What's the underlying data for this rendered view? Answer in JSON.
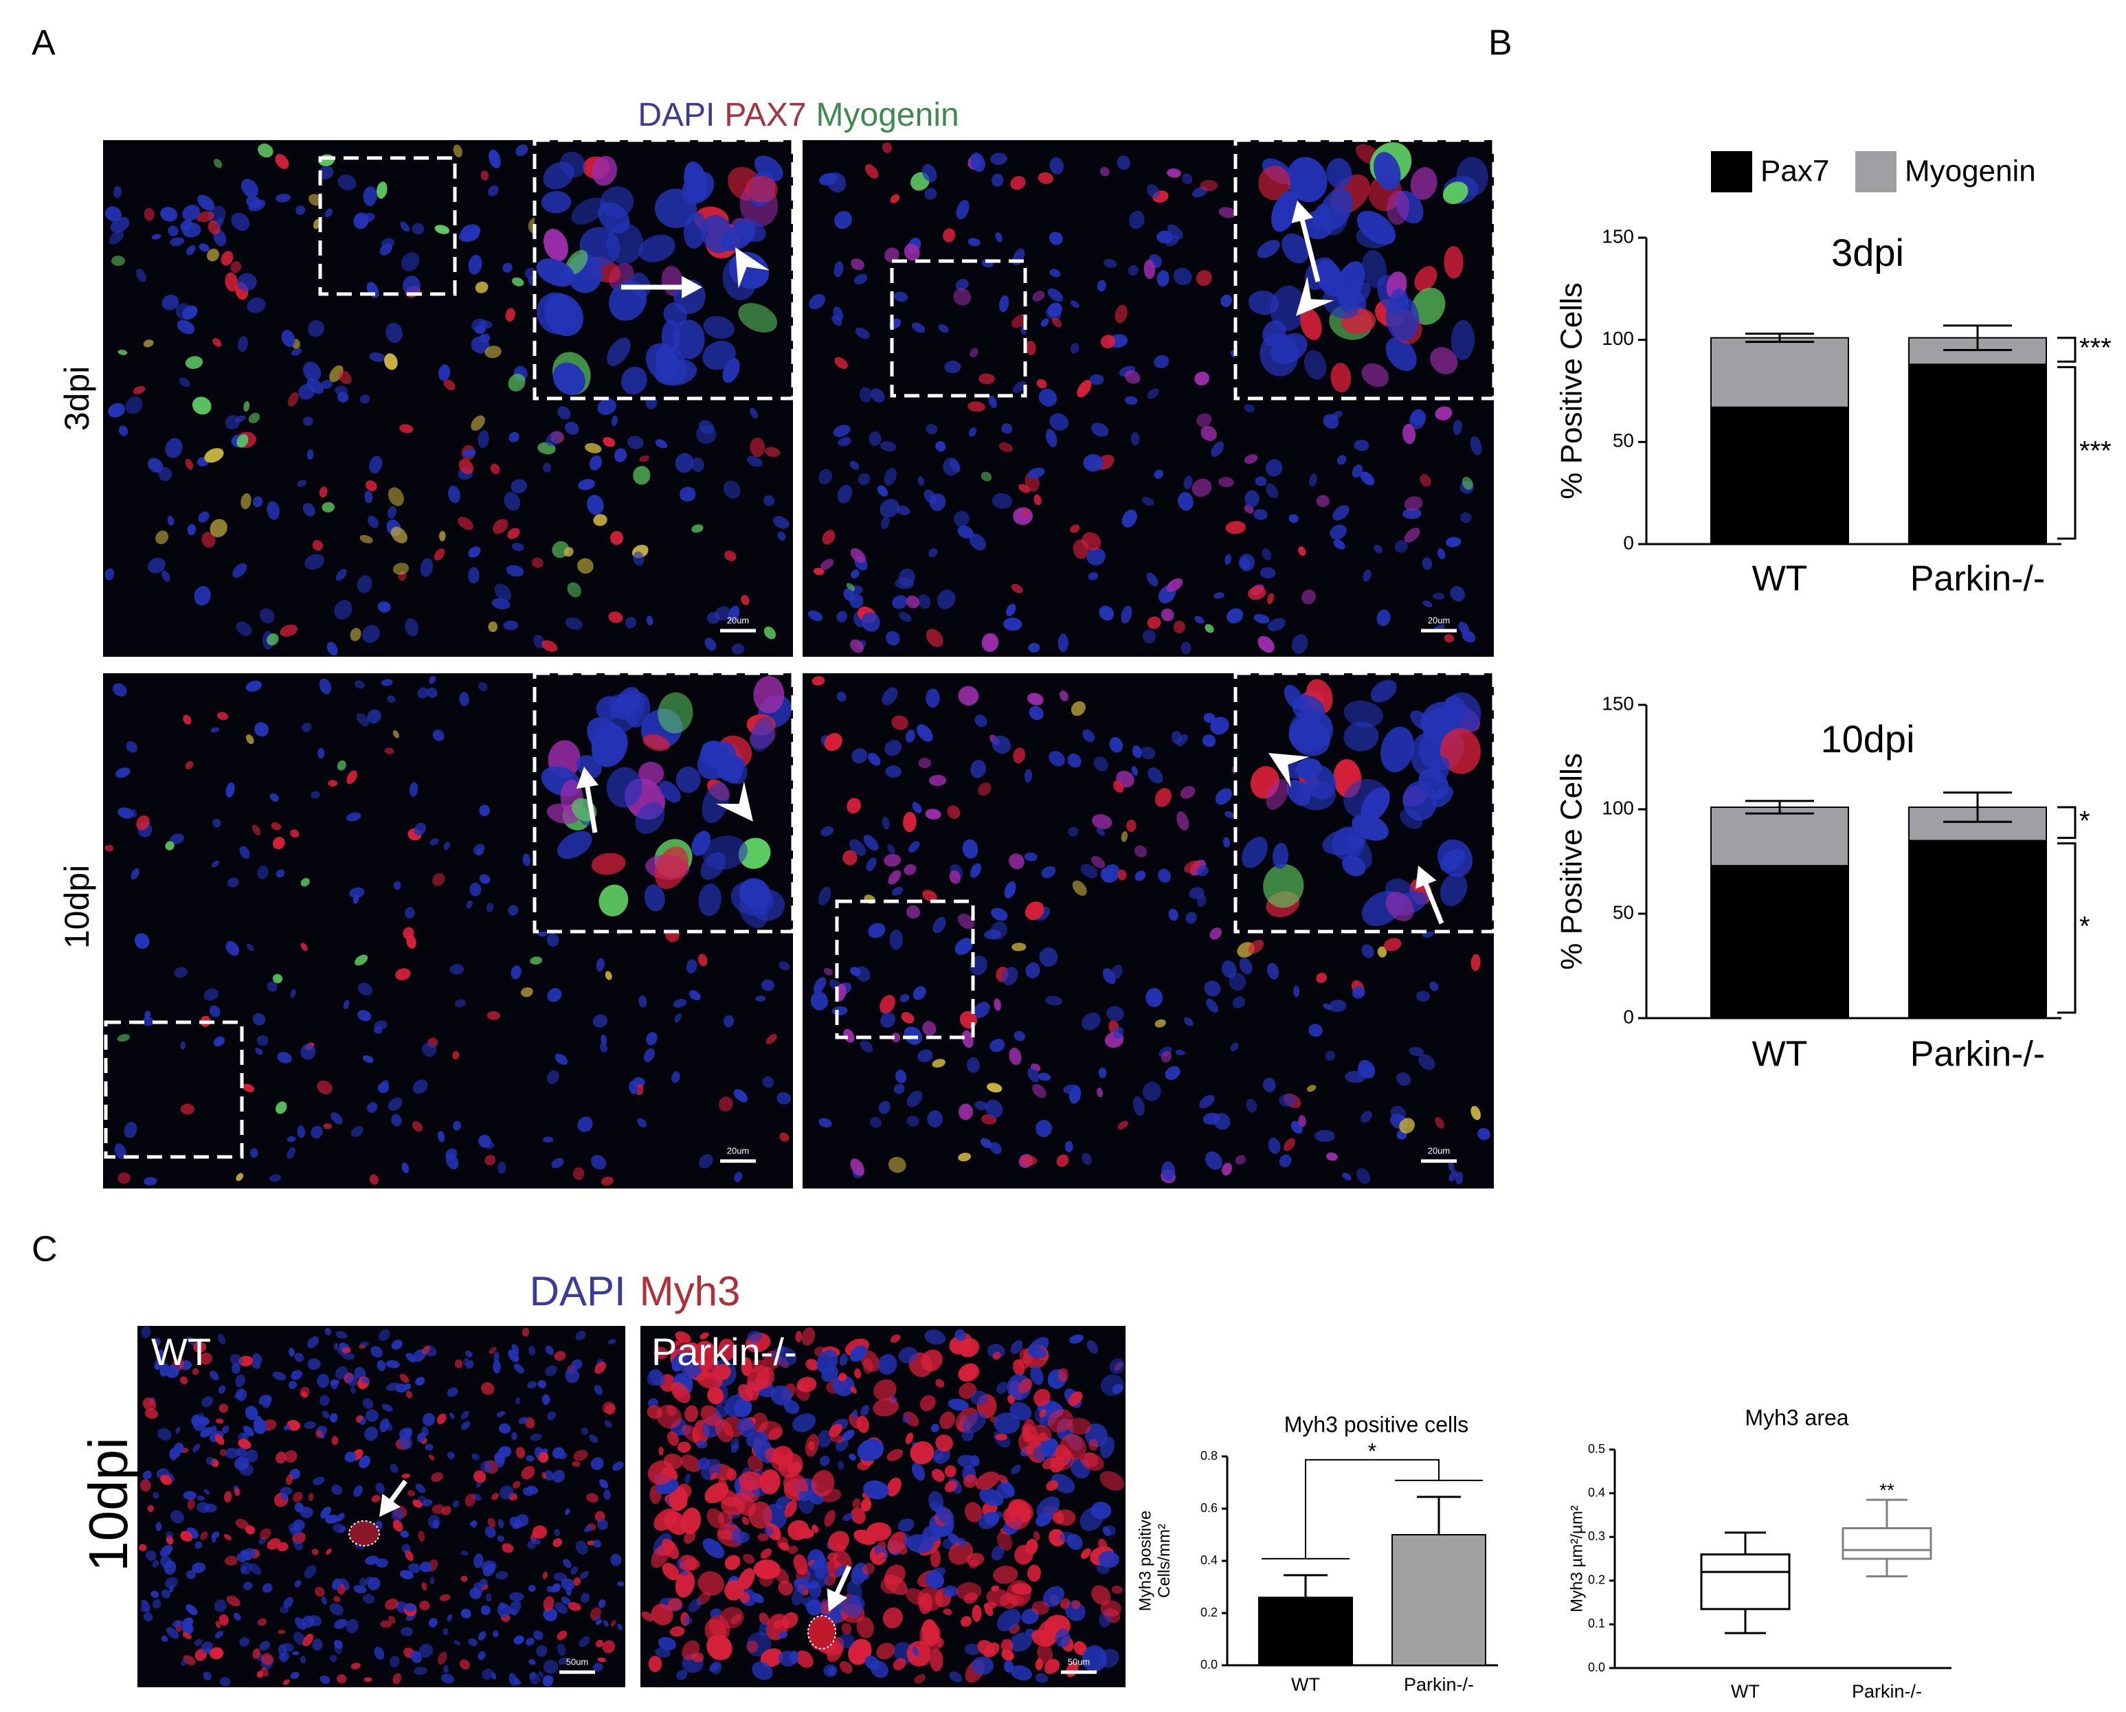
{
  "panel_labels": [
    "A",
    "B",
    "C"
  ],
  "figure_a": {
    "stain": [
      "DAPI",
      "PAX7",
      "Myogenin"
    ],
    "stain_colors": [
      "#3b3b8f",
      "#a5343e",
      "#3e8a50"
    ],
    "rows": [
      "3dpi",
      "10dpi"
    ],
    "scale_bar": "20um"
  },
  "figure_c": {
    "stain": [
      "DAPI",
      "Myh3"
    ],
    "stain_colors": [
      "#3b3b9a",
      "#b03038"
    ],
    "row": "10dpi",
    "images": [
      "WT",
      "Parkin-/-"
    ],
    "scale_bar": "50um"
  },
  "chart_data": [
    {
      "type": "stacked_bar",
      "title": "3dpi",
      "y_label": "% Positive Cells",
      "categories": [
        "WT",
        "Parkin-/-"
      ],
      "series": [
        {
          "name": "Pax7",
          "color": "#000000",
          "values": [
            67,
            88
          ],
          "errors": [
            2,
            6
          ]
        },
        {
          "name": "Myogenin",
          "color": "#a0a0a4",
          "values": [
            34,
            13
          ],
          "errors": [
            2,
            6
          ]
        }
      ],
      "ylim": [
        0,
        150
      ],
      "yticks": [
        0,
        50,
        100,
        150
      ],
      "annotations": [
        "***",
        "***"
      ],
      "legend": "top"
    },
    {
      "type": "stacked_bar",
      "title": "10dpi",
      "y_label": "% Positive Cells",
      "categories": [
        "WT",
        "Parkin-/-"
      ],
      "series": [
        {
          "color": "#000000",
          "values": [
            73,
            85
          ],
          "errors": [
            3,
            7
          ]
        },
        {
          "color": "#a0a0a4",
          "values": [
            28,
            16
          ],
          "errors": [
            3,
            7
          ]
        }
      ],
      "ylim": [
        0,
        150
      ],
      "yticks": [
        0,
        50,
        100,
        150
      ],
      "annotations": [
        "*",
        "*"
      ]
    },
    {
      "type": "bar",
      "title": "Myh3 positive cells",
      "y_label": [
        "Myh3 positive",
        "Cells/mm²"
      ],
      "categories": [
        "WT",
        "Parkin-/-"
      ],
      "values": [
        0.26,
        0.5
      ],
      "errors": [
        0.085,
        0.145
      ],
      "colors": [
        "#000000",
        "#a0a0a0"
      ],
      "ylim": [
        0,
        0.8
      ],
      "yticks": [
        {
          "value": 0,
          "label": "0.0"
        },
        0.2,
        0.4,
        0.6,
        0.8
      ],
      "annotations": [
        "*"
      ]
    },
    {
      "type": "box",
      "title": "Myh3 area",
      "y_label": "Myh3 µm²/µm²",
      "categories": [
        "WT",
        "Parkin-/-"
      ],
      "boxes": [
        {
          "min": 0.08,
          "q1": 0.135,
          "median": 0.22,
          "q3": 0.26,
          "max": 0.31
        },
        {
          "min": 0.21,
          "q1": 0.25,
          "median": 0.27,
          "q3": 0.32,
          "max": 0.385
        }
      ],
      "colors": [
        "#000000",
        "#808080"
      ],
      "ylim": [
        0,
        0.5
      ],
      "yticks": [
        {
          "value": 0,
          "label": "0.0"
        },
        0.1,
        0.2,
        0.3,
        0.4,
        0.5
      ],
      "annotations": [
        "**"
      ]
    }
  ]
}
